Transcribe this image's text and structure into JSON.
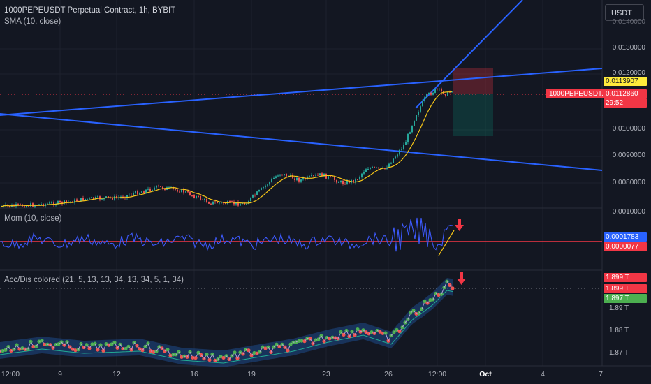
{
  "header": {
    "title": "1000PEPEUSDT Perpetual Contract, 1h, BYBIT",
    "sma_label": "SMA (10, close)",
    "currency_button": "USDT"
  },
  "price_axis": {
    "ticks": [
      "0.0130000",
      "0.0120000",
      "0.0100000",
      "0.0090000",
      "0.0080000"
    ],
    "top_partial": "0.0140000"
  },
  "price_labels": {
    "high": "0.0113907",
    "current": "0.0112860",
    "countdown": "29:52",
    "symbol_tag": "1000PEPEUSDT.P"
  },
  "momentum": {
    "label": "Mom (10, close)",
    "axis_top": "0.0010000",
    "value_blue": "0.0001783",
    "value_red": "0.0000077"
  },
  "accdist": {
    "label": "Acc/Dis colored (21, 5, 13, 13, 34, 13, 34, 5, 1, 34)",
    "value1": "1.899 T",
    "value2": "1.899 T",
    "value3": "1.897 T",
    "ticks": [
      "1.89 T",
      "1.88 T",
      "1.87 T"
    ]
  },
  "time_axis": {
    "ticks": [
      "12:00",
      "9",
      "12",
      "16",
      "19",
      "23",
      "26",
      "12:00",
      "Oct",
      "4",
      "7"
    ]
  },
  "colors": {
    "background": "#131722",
    "up": "#26a69a",
    "down": "#ef5350",
    "trendline": "#2962ff",
    "sma": "#f5c518",
    "momentum": "#3d5afe",
    "zero_line": "#f23645"
  },
  "icons": {
    "arrow1": "red-down-arrow-icon",
    "arrow2": "red-down-arrow-icon"
  }
}
